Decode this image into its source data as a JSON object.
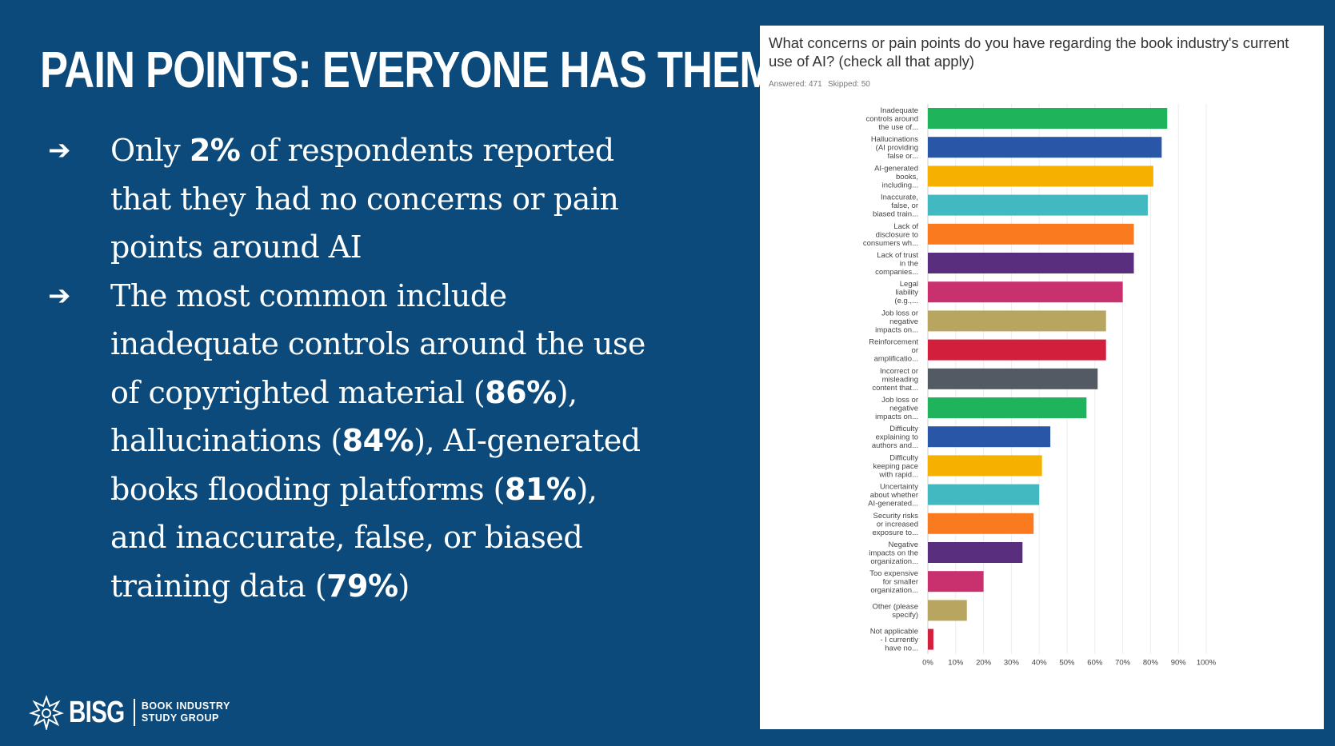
{
  "slide": {
    "title": "PAIN POINTS: EVERYONE HAS THEM",
    "bullets": [
      {
        "parts": [
          {
            "text": "Only ",
            "bold": false
          },
          {
            "text": "2%",
            "bold": true
          },
          {
            "text": " of respondents reported that they had no concerns or pain points around AI",
            "bold": false
          }
        ]
      },
      {
        "parts": [
          {
            "text": "The most common include inadequate controls around the use of copyrighted material (",
            "bold": false
          },
          {
            "text": "86%",
            "bold": true
          },
          {
            "text": "), hallucinations (",
            "bold": false
          },
          {
            "text": "84%",
            "bold": true
          },
          {
            "text": "), AI-generated books flooding platforms (",
            "bold": false
          },
          {
            "text": "81%",
            "bold": true
          },
          {
            "text": "), and inaccurate, false, or biased training data (",
            "bold": false
          },
          {
            "text": "79%",
            "bold": true
          },
          {
            "text": ")",
            "bold": false
          }
        ]
      }
    ],
    "arrow_glyph": "➔"
  },
  "logo": {
    "wordmark": "BISG",
    "line1": "BOOK INDUSTRY",
    "line2": "STUDY GROUP"
  },
  "survey": {
    "question": "What concerns or pain points do you have regarding the book industry's current use of AI? (check all that apply)",
    "answered": "Answered: 471",
    "skipped": "Skipped: 50"
  },
  "chart_data": {
    "type": "bar",
    "orientation": "horizontal",
    "title": "What concerns or pain points do you have regarding the book industry's current use of AI? (check all that apply)",
    "xlim": [
      0,
      100
    ],
    "x_ticks": [
      "0%",
      "10%",
      "20%",
      "30%",
      "40%",
      "50%",
      "60%",
      "70%",
      "80%",
      "90%",
      "100%"
    ],
    "grid": true,
    "categories": [
      [
        "Inadequate",
        "controls around",
        "the use of..."
      ],
      [
        "Hallucinations",
        "(AI providing",
        "false or..."
      ],
      [
        "AI-generated",
        "books,",
        "including..."
      ],
      [
        "Inaccurate,",
        "false, or",
        "biased train..."
      ],
      [
        "Lack of",
        "disclosure to",
        "consumers wh..."
      ],
      [
        "Lack of trust",
        "in the",
        "companies..."
      ],
      [
        "Legal",
        "liability",
        "(e.g.,..."
      ],
      [
        "Job loss or",
        "negative",
        "impacts on..."
      ],
      [
        "Reinforcement",
        "or",
        "amplificatio..."
      ],
      [
        "Incorrect or",
        "misleading",
        "content that..."
      ],
      [
        "Job loss or",
        "negative",
        "impacts on..."
      ],
      [
        "Difficulty",
        "explaining to",
        "authors and..."
      ],
      [
        "Difficulty",
        "keeping pace",
        "with rapid..."
      ],
      [
        "Uncertainty",
        "about whether",
        "AI-generated..."
      ],
      [
        "Security risks",
        "or increased",
        "exposure to..."
      ],
      [
        "Negative",
        "impacts on the",
        "organization..."
      ],
      [
        "Too expensive",
        "for smaller",
        "organization..."
      ],
      [
        "Other (please",
        "specify)"
      ],
      [
        "Not applicable",
        "- I currently",
        "have no..."
      ]
    ],
    "values": [
      86,
      84,
      81,
      79,
      74,
      74,
      70,
      64,
      64,
      61,
      57,
      44,
      41,
      40,
      38,
      34,
      20,
      14,
      2
    ],
    "colors": [
      "#1fb35b",
      "#2a56a8",
      "#f6b100",
      "#42b8c0",
      "#f97a1f",
      "#5a2e7e",
      "#c8306e",
      "#b8a660",
      "#d21f3c",
      "#535a63",
      "#1fb35b",
      "#2a56a8",
      "#f6b100",
      "#42b8c0",
      "#f97a1f",
      "#5a2e7e",
      "#c8306e",
      "#b8a660",
      "#d21f3c"
    ]
  }
}
